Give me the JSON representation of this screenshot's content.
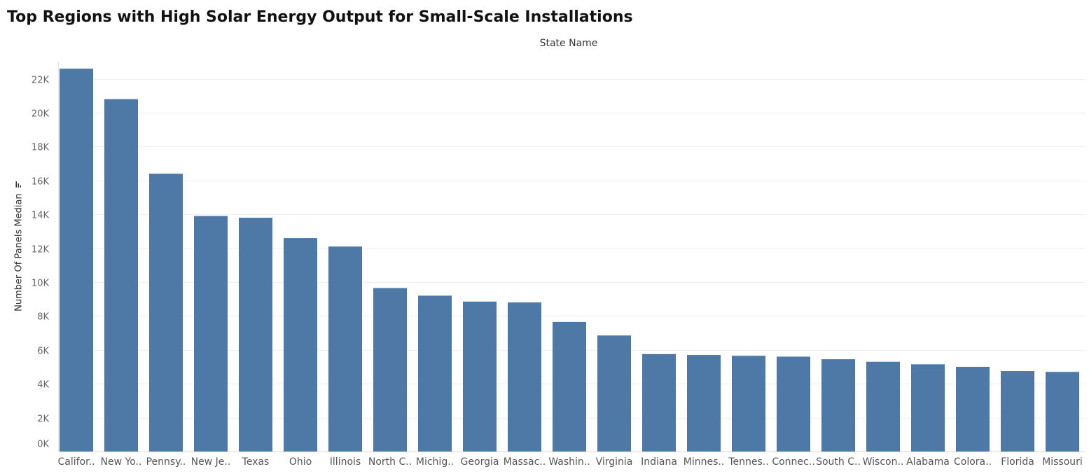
{
  "chart_data": {
    "type": "bar",
    "title": "Top Regions with High Solar Energy Output for Small-Scale Installations",
    "column_header": "State Name",
    "ylabel": "Number Of Panels Median",
    "ylim": [
      0,
      22500
    ],
    "yticks": [
      0,
      2000,
      4000,
      6000,
      8000,
      10000,
      12000,
      14000,
      16000,
      18000,
      20000,
      22000
    ],
    "ytick_labels": [
      "0K",
      "2K",
      "4K",
      "6K",
      "8K",
      "10K",
      "12K",
      "14K",
      "16K",
      "18K",
      "20K",
      "22K"
    ],
    "grid": true,
    "bar_color": "#4e79a7",
    "categories": [
      "Califor..",
      "New Yo..",
      "Pennsy..",
      "New Je..",
      "Texas",
      "Ohio",
      "Illinois",
      "North C..",
      "Michig..",
      "Georgia",
      "Massac..",
      "Washin..",
      "Virginia",
      "Indiana",
      "Minnes..",
      "Tennes..",
      "Connec..",
      "South C..",
      "Wiscon..",
      "Alabama",
      "Colora..",
      "Florida",
      "Missouri"
    ],
    "values": [
      22600,
      20800,
      16400,
      13900,
      13800,
      12600,
      12100,
      9650,
      9200,
      8850,
      8800,
      7650,
      6850,
      5750,
      5700,
      5650,
      5600,
      5450,
      5300,
      5150,
      5000,
      4750,
      4700
    ]
  }
}
